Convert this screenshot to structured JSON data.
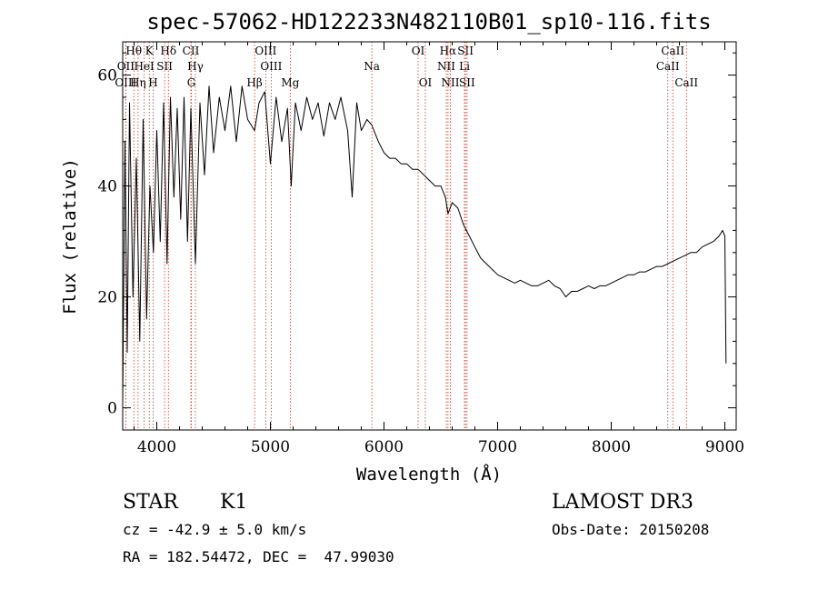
{
  "chart_data": {
    "type": "line",
    "title": "spec-57062-HD122233N482110B01_sp10-116.fits",
    "xlabel": "Wavelength (Å)",
    "ylabel": "Flux (relative)",
    "xlim": [
      3700,
      9100
    ],
    "ylim": [
      -4,
      66
    ],
    "xticks": [
      4000,
      5000,
      6000,
      7000,
      8000,
      9000
    ],
    "yticks": [
      0,
      20,
      40,
      60
    ],
    "grid": false,
    "series": [
      {
        "name": "spectrum",
        "x": [
          3700,
          3720,
          3740,
          3760,
          3790,
          3820,
          3850,
          3880,
          3910,
          3940,
          3970,
          4000,
          4030,
          4060,
          4090,
          4120,
          4150,
          4180,
          4210,
          4240,
          4270,
          4300,
          4340,
          4380,
          4420,
          4460,
          4500,
          4550,
          4600,
          4650,
          4700,
          4750,
          4800,
          4861,
          4900,
          4950,
          5000,
          5050,
          5100,
          5150,
          5183,
          5220,
          5270,
          5320,
          5370,
          5420,
          5470,
          5520,
          5570,
          5620,
          5680,
          5720,
          5760,
          5800,
          5850,
          5893,
          5950,
          6000,
          6050,
          6100,
          6150,
          6200,
          6250,
          6300,
          6350,
          6400,
          6450,
          6500,
          6540,
          6563,
          6600,
          6650,
          6700,
          6750,
          6800,
          6850,
          6900,
          6950,
          7000,
          7050,
          7100,
          7150,
          7200,
          7250,
          7300,
          7350,
          7400,
          7450,
          7500,
          7550,
          7600,
          7650,
          7700,
          7750,
          7800,
          7850,
          7900,
          7950,
          8000,
          8050,
          8100,
          8150,
          8200,
          8250,
          8300,
          8350,
          8400,
          8450,
          8500,
          8550,
          8600,
          8650,
          8700,
          8750,
          8800,
          8850,
          8900,
          8950,
          8980,
          9000,
          9010
        ],
        "y": [
          1,
          48,
          10,
          55,
          20,
          45,
          12,
          52,
          16,
          40,
          28,
          50,
          30,
          55,
          26,
          56,
          38,
          54,
          34,
          56,
          30,
          54,
          26,
          55,
          42,
          58,
          46,
          56,
          50,
          58,
          48,
          58,
          52,
          50,
          55,
          57,
          44,
          56,
          48,
          54,
          40,
          55,
          50,
          56,
          52,
          55,
          49,
          55,
          52,
          56,
          50,
          38,
          55,
          50,
          52,
          51,
          48,
          46,
          45,
          45,
          44,
          44,
          43,
          43,
          42,
          41,
          40,
          40,
          38,
          35,
          37,
          36,
          33,
          31,
          29,
          27,
          26,
          25,
          24,
          23.5,
          23,
          22.5,
          23,
          22.5,
          22,
          22,
          22.5,
          23,
          22,
          21.5,
          20,
          21,
          21,
          21.5,
          22,
          21.5,
          22,
          22,
          22.5,
          23,
          23.5,
          24,
          24,
          24.5,
          24.5,
          25,
          25.5,
          25.5,
          26,
          26.5,
          27,
          27.5,
          28,
          28,
          29,
          29.5,
          30,
          31,
          32,
          31,
          8
        ]
      }
    ],
    "lines": [
      {
        "label": "Hθ",
        "wave": 3798,
        "row": 1
      },
      {
        "label": "OII",
        "wave": 3727,
        "row": 2
      },
      {
        "label": "OIII",
        "wave": 3727,
        "row": 3
      },
      {
        "label": "K",
        "wave": 3934,
        "row": 1
      },
      {
        "label": "HeI",
        "wave": 3889,
        "row": 2
      },
      {
        "label": "Hη",
        "wave": 3835,
        "row": 3
      },
      {
        "label": "Hδ",
        "wave": 4102,
        "row": 1
      },
      {
        "label": "SII",
        "wave": 4069,
        "row": 2
      },
      {
        "label": "H",
        "wave": 3968,
        "row": 3
      },
      {
        "label": "CII",
        "wave": 4300,
        "row": 1
      },
      {
        "label": "Hγ",
        "wave": 4340,
        "row": 2
      },
      {
        "label": "G",
        "wave": 4304,
        "row": 3
      },
      {
        "label": "OIII",
        "wave": 4959,
        "row": 1
      },
      {
        "label": "OIII",
        "wave": 5007,
        "row": 2
      },
      {
        "label": "Hβ",
        "wave": 4861,
        "row": 3
      },
      {
        "label": "Mg",
        "wave": 5175,
        "row": 3
      },
      {
        "label": "Na",
        "wave": 5893,
        "row": 2
      },
      {
        "label": "OI",
        "wave": 6300,
        "row": 1
      },
      {
        "label": "OI",
        "wave": 6364,
        "row": 3
      },
      {
        "label": "Hα",
        "wave": 6563,
        "row": 1
      },
      {
        "label": "NII",
        "wave": 6548,
        "row": 2
      },
      {
        "label": "NII",
        "wave": 6584,
        "row": 3
      },
      {
        "label": "SII",
        "wave": 6717,
        "row": 1
      },
      {
        "label": "Li",
        "wave": 6708,
        "row": 2
      },
      {
        "label": "SII",
        "wave": 6731,
        "row": 3
      },
      {
        "label": "CaII",
        "wave": 8542,
        "row": 1
      },
      {
        "label": "CaII",
        "wave": 8498,
        "row": 2
      },
      {
        "label": "CaII",
        "wave": 8662,
        "row": 3
      }
    ]
  },
  "info": {
    "classification": "STAR",
    "subclass": "K1",
    "survey": "LAMOST DR3",
    "redshift": "cz = -42.9 ± 5.0 km/s",
    "obs_date": "Obs-Date: 20150208",
    "coords": "RA = 182.54472, DEC =  47.99030"
  },
  "colors": {
    "axis": "#000000",
    "spectrum": "#000000",
    "line_marker": "#c0392b"
  }
}
